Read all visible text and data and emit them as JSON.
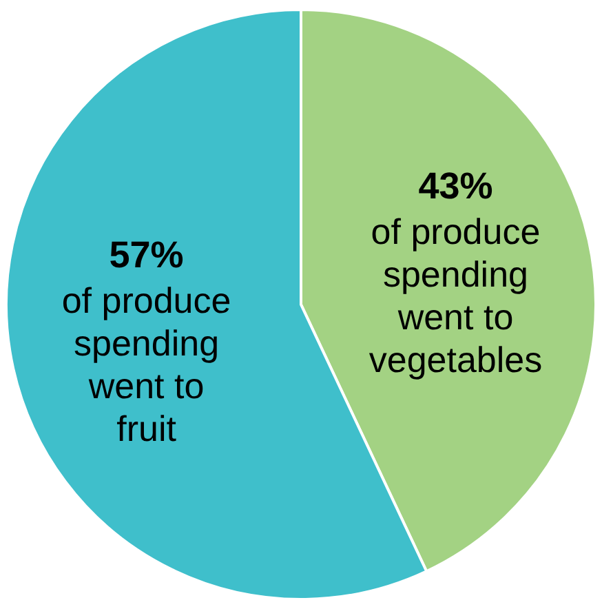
{
  "chart_data": {
    "type": "pie",
    "categories": [
      null,
      null
    ],
    "values": [
      43,
      57
    ],
    "colors": [
      "#a3d283",
      "#3fbfcb"
    ],
    "value_labels": [
      "43%\nof produce\nspending\nwent to\nvegetables",
      "57%\nof produce\nspending\nwent to\nfruit"
    ]
  }
}
